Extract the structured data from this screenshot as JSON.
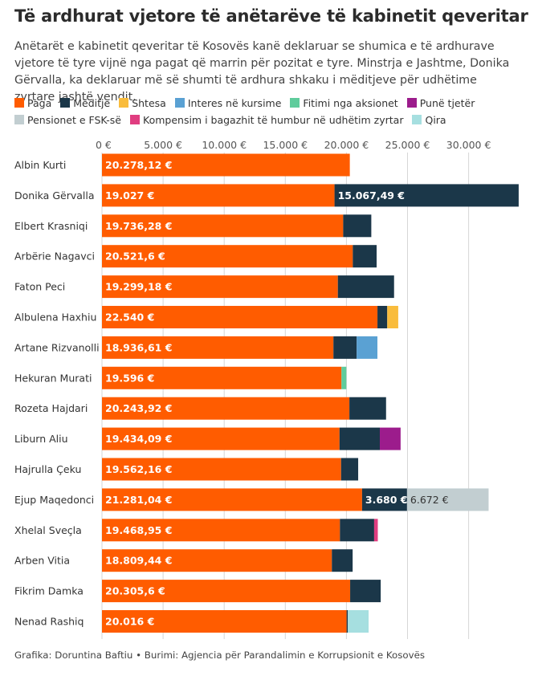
{
  "title": "Të ardhurat vjetore të anëtarëve të kabinetit qeveritar",
  "subtitle": "Anëtarët e kabinetit qeveritar të Kosovës kanë deklaruar se shumica e të ardhurave vjetore të tyre vijnë nga pagat që marrin për pozitat e tyre. Minstrja e Jashtme, Donika Gërvalla, ka deklaruar më së shumti të ardhura shkaku i mëditjeve për udhëtime zyrtare jashtë vendit.",
  "footer": "Grafika: Doruntina Baftiu • Burimi: Agjencia për Parandalimin e Korrupsionit e Kosovës",
  "chart_data": {
    "type": "bar",
    "orientation": "horizontal",
    "stacked": true,
    "xlim": [
      0,
      33500
    ],
    "x_ticks": [
      0,
      5000,
      10000,
      15000,
      20000,
      25000,
      30000
    ],
    "x_tick_labels": [
      "0 €",
      "5.000 €",
      "10.000 €",
      "15.000 €",
      "20.000 €",
      "25.000 €",
      "30.000 €"
    ],
    "grid": true,
    "legend_placement": "top",
    "categories": [
      "Albin Kurti",
      "Donika Gërvalla",
      "Elbert Krasniqi",
      "Arbërie Nagavci",
      "Faton Peci",
      "Albulena Haxhiu",
      "Artane Rizvanolli",
      "Hekuran Murati",
      "Rozeta Hajdari",
      "Liburn Aliu",
      "Hajrulla Çeku",
      "Ejup Maqedonci",
      "Xhelal Sveçla",
      "Arben Vitia",
      "Fikrim Damka",
      "Nenad Rashiq"
    ],
    "series": [
      {
        "name": "Paga",
        "color": "#ff5c00",
        "values": [
          20278.12,
          19027,
          19736.28,
          20521.6,
          19299.18,
          22540,
          18936.61,
          19596,
          20243.92,
          19434.09,
          19562.16,
          21281.04,
          19468.95,
          18809.44,
          20305.6,
          20016
        ],
        "labels": [
          "20.278,12 €",
          "19.027 €",
          "19.736,28 €",
          "20.521,6 €",
          "19.299,18 €",
          "22.540 €",
          "18.936,61 €",
          "19.596 €",
          "20.243,92 €",
          "19.434,09 €",
          "19.562,16 €",
          "21.281,04 €",
          "19.468,95 €",
          "18.809,44 €",
          "20.305,6 €",
          "20.016 €"
        ]
      },
      {
        "name": "Mëditje",
        "color": "#1b3749",
        "values": [
          0,
          15067.49,
          2300,
          1950,
          4600,
          800,
          1900,
          0,
          3000,
          3300,
          1400,
          3680,
          2800,
          1700,
          2500,
          100
        ],
        "labels": [
          "",
          "15.067,49 €",
          "",
          "",
          "",
          "",
          "",
          "",
          "",
          "",
          "",
          "3.680 €",
          "",
          "",
          "",
          ""
        ]
      },
      {
        "name": "Shtesa",
        "color": "#f9bc3c",
        "values": [
          0,
          0,
          0,
          0,
          0,
          900,
          0,
          0,
          0,
          0,
          0,
          0,
          0,
          0,
          0,
          0
        ],
        "labels": []
      },
      {
        "name": "Interes në kursime",
        "color": "#5aa1d3",
        "values": [
          0,
          0,
          0,
          0,
          0,
          0,
          1700,
          0,
          0,
          0,
          0,
          0,
          0,
          0,
          0,
          0
        ],
        "labels": []
      },
      {
        "name": "Fitimi nga aksionet",
        "color": "#5fcc9c",
        "values": [
          0,
          0,
          0,
          0,
          0,
          0,
          0,
          400,
          0,
          0,
          0,
          0,
          0,
          0,
          0,
          0
        ],
        "labels": []
      },
      {
        "name": "Punë tjetër",
        "color": "#9c1c8c",
        "values": [
          0,
          0,
          0,
          0,
          0,
          0,
          0,
          0,
          0,
          1700,
          0,
          0,
          0,
          0,
          0,
          0
        ],
        "labels": []
      },
      {
        "name": "Pensionet e FSK-së",
        "color": "#c2ced1",
        "values": [
          0,
          0,
          0,
          0,
          0,
          0,
          0,
          0,
          0,
          0,
          0,
          6672,
          0,
          0,
          0,
          0
        ],
        "labels": [
          "",
          "",
          "",
          "",
          "",
          "",
          "",
          "",
          "",
          "",
          "",
          "6.672 €",
          "",
          "",
          "",
          ""
        ]
      },
      {
        "name": "Kompensim i bagazhit të humbur në udhëtim zyrtar",
        "color": "#e03d80",
        "values": [
          0,
          0,
          0,
          0,
          0,
          0,
          0,
          0,
          0,
          0,
          0,
          0,
          300,
          0,
          0,
          0
        ],
        "labels": []
      },
      {
        "name": "Qira",
        "color": "#a6dfe0",
        "values": [
          0,
          0,
          0,
          0,
          0,
          0,
          0,
          0,
          0,
          0,
          0,
          0,
          0,
          0,
          0,
          1700
        ],
        "labels": []
      }
    ]
  }
}
